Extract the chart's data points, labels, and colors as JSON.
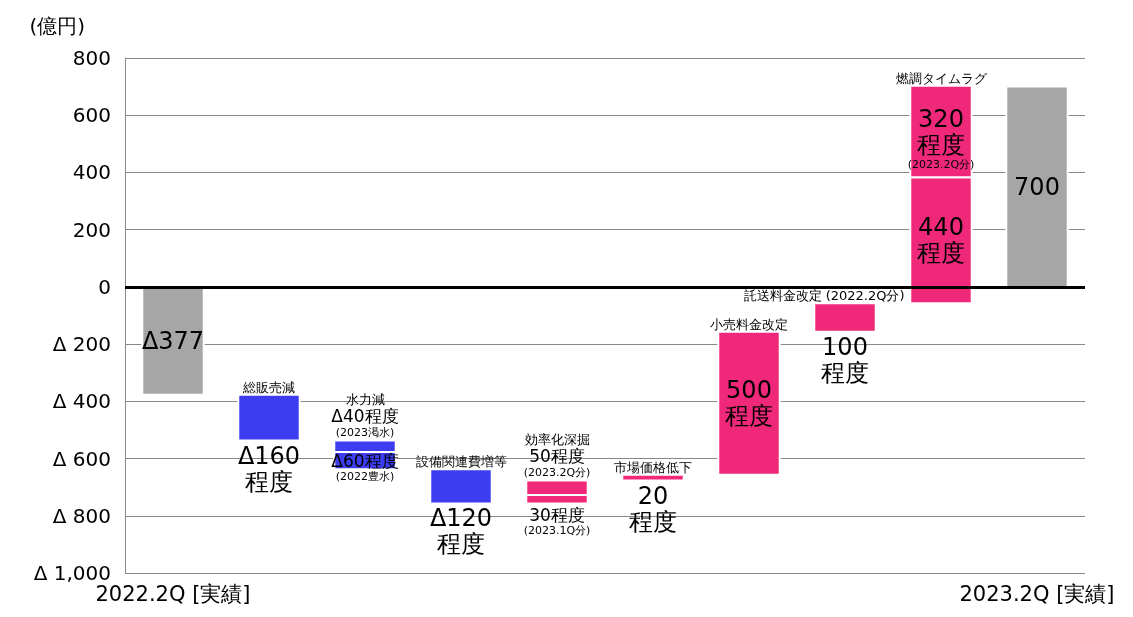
{
  "chart_data": {
    "type": "bar",
    "ylabel": "(億円)",
    "categories": [
      "2022.2Q [実績]",
      "総販売減",
      "水力減",
      "設備関連費増等",
      "効率化深掘",
      "市場価格低下",
      "小売料金改定",
      "託送料金改定 (2022.2Q分)",
      "燃調タイムラグ",
      "2023.2Q [実績]"
    ],
    "series": [
      {
        "base": [
          0,
          -377,
          -537,
          -637,
          -757,
          -677,
          -657,
          -157,
          -57,
          0
        ],
        "values": [
          -377,
          -160,
          -40,
          -120,
          30,
          20,
          500,
          100,
          440,
          700
        ],
        "colors": [
          "#a6a6a6",
          "#3c3cf0",
          "#3c3cf0",
          "#3c3cf0",
          "#f0287a",
          "#f0287a",
          "#f0287a",
          "#f0287a",
          "#f0287a",
          "#a6a6a6"
        ],
        "value_labels": [
          "Δ377",
          "Δ160\n程度",
          "Δ40程度\n(2023渇水)",
          "Δ120\n程度",
          "30程度\n(2023.1Q分)",
          "20\n程度",
          "500\n程度",
          "100\n程度",
          "440\n程度",
          "700"
        ]
      },
      {
        "base": [
          null,
          null,
          -577,
          null,
          -727,
          null,
          null,
          null,
          383,
          null
        ],
        "values": [
          null,
          null,
          -60,
          null,
          50,
          null,
          null,
          null,
          320,
          null
        ],
        "colors": [
          null,
          null,
          "#3c3cf0",
          null,
          "#f0287a",
          null,
          null,
          null,
          "#f0287a",
          null
        ],
        "value_labels": [
          null,
          null,
          "Δ60程度\n(2022豊水)",
          null,
          "50程度\n(2023.2Q分)",
          null,
          null,
          null,
          "320\n程度\n(2023.2Q分)",
          null
        ]
      }
    ],
    "ylim": [
      -1000,
      800
    ],
    "yticks": [
      {
        "value": -1000,
        "label": "Δ 1,000"
      },
      {
        "value": -800,
        "label": "Δ 800"
      },
      {
        "value": -600,
        "label": "Δ 600"
      },
      {
        "value": -400,
        "label": "Δ 400"
      },
      {
        "value": -200,
        "label": "Δ 200"
      },
      0,
      200,
      400,
      600,
      800
    ],
    "grid": "y",
    "ref_lines": [
      {
        "axis": "y",
        "value": 0,
        "color": "#000000"
      }
    ]
  }
}
